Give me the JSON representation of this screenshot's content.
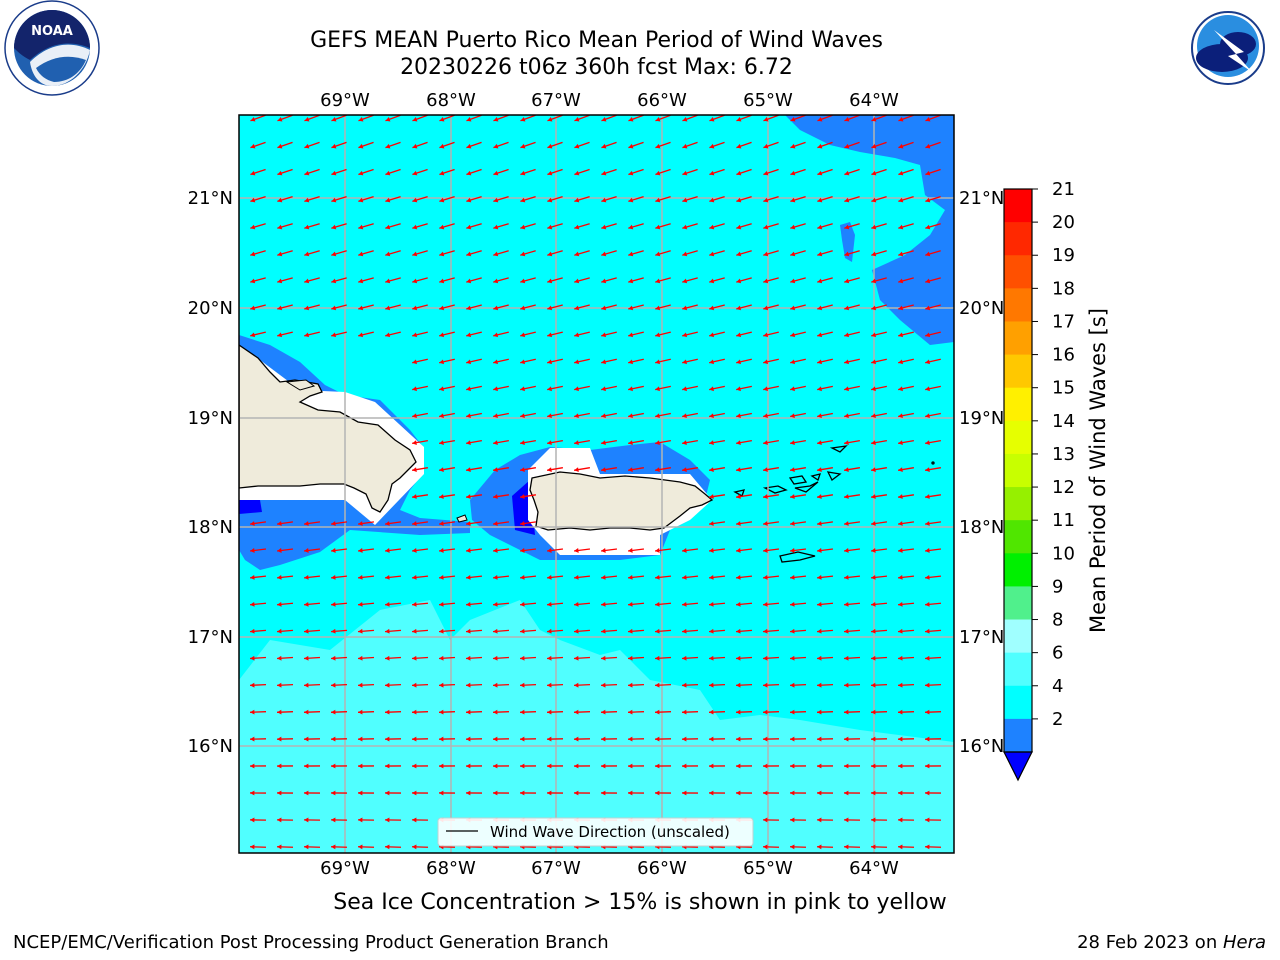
{
  "header": {
    "title_line1": "GEFS MEAN Puerto Rico Mean Period of Wind Waves",
    "title_line2": "20230226 t06z 360h fcst   Max: 6.72"
  },
  "logos": {
    "left": "noaa-logo",
    "right": "national-weather-service-logo",
    "left_text": "NATIONAL OCEANIC AND ATMOSPHERIC ADMINISTRATION · U.S. DEPARTMENT OF COMMERCE · NOAA",
    "right_text": "NATIONAL WEATHER SERVICE"
  },
  "map": {
    "lon_labels": [
      "69°W",
      "68°W",
      "67°W",
      "66°W",
      "65°W",
      "64°W"
    ],
    "lat_labels": [
      "21°N",
      "20°N",
      "19°N",
      "18°N",
      "17°N",
      "16°N"
    ],
    "legend_label": "Wind Wave Direction (unscaled)",
    "land_color": "#efebdb",
    "arrow_color": "#ff0000"
  },
  "colorbar": {
    "label": "Mean Period of Wind Waves [s]",
    "ticks": [
      "21",
      "20",
      "19",
      "18",
      "17",
      "16",
      "15",
      "14",
      "13",
      "12",
      "11",
      "10",
      "9",
      "8",
      "6",
      "4",
      "2"
    ],
    "colors": [
      "#ff0000",
      "#ff2800",
      "#ff5000",
      "#ff7800",
      "#ffa000",
      "#ffc800",
      "#fff000",
      "#e6ff00",
      "#c8ff00",
      "#96f000",
      "#50e600",
      "#00f000",
      "#50f08c",
      "#a0ffff",
      "#50ffff",
      "#00ffff",
      "#1e82ff"
    ],
    "extend_color": "#0000ff"
  },
  "footer": {
    "note": "Sea Ice Concentration > 15% is shown in pink to yellow",
    "credit_left": "NCEP/EMC/Verification Post Processing Product Generation Branch",
    "credit_right_date": "28 Feb 2023 on ",
    "credit_right_host": "Hera"
  }
}
